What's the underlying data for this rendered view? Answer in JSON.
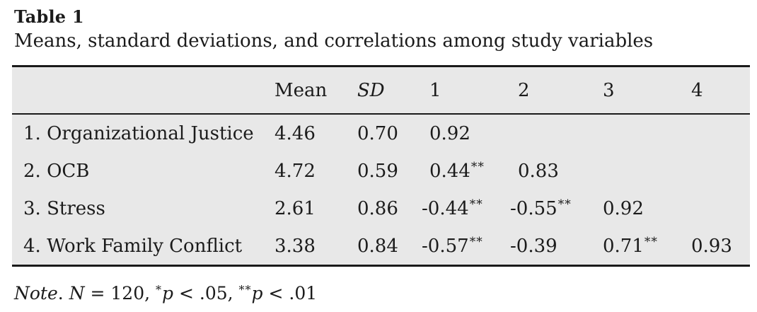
{
  "title": "Table 1",
  "caption": "Means, standard deviations, and correlations among study variables",
  "colors": {
    "table_background": "#e8e8e8",
    "rule": "#1a1a1a",
    "text": "#1b1b1b",
    "page_background": "#ffffff"
  },
  "table": {
    "headers": [
      "Mean",
      "SD",
      "1",
      "2",
      "3",
      "4"
    ],
    "rows": [
      {
        "label": "1. Organizational Justice",
        "cells": [
          {
            "v": "4.46",
            "sig": ""
          },
          {
            "v": "0.70",
            "sig": ""
          },
          {
            "v": "0.92",
            "sig": ""
          },
          {
            "v": "",
            "sig": ""
          },
          {
            "v": "",
            "sig": ""
          },
          {
            "v": "",
            "sig": ""
          }
        ]
      },
      {
        "label": "2. OCB",
        "cells": [
          {
            "v": "4.72",
            "sig": ""
          },
          {
            "v": "0.59",
            "sig": ""
          },
          {
            "v": "0.44",
            "sig": "**"
          },
          {
            "v": "0.83",
            "sig": ""
          },
          {
            "v": "",
            "sig": ""
          },
          {
            "v": "",
            "sig": ""
          }
        ]
      },
      {
        "label": "3. Stress",
        "cells": [
          {
            "v": "2.61",
            "sig": ""
          },
          {
            "v": "0.86",
            "sig": ""
          },
          {
            "v": "-0.44",
            "sig": "**"
          },
          {
            "v": "-0.55",
            "sig": "**"
          },
          {
            "v": "0.92",
            "sig": ""
          },
          {
            "v": "",
            "sig": ""
          }
        ]
      },
      {
        "label": "4. Work Family Conflict",
        "cells": [
          {
            "v": "3.38",
            "sig": ""
          },
          {
            "v": "0.84",
            "sig": ""
          },
          {
            "v": "-0.57",
            "sig": "**"
          },
          {
            "v": "-0.39",
            "sig": ""
          },
          {
            "v": "0.71",
            "sig": "**"
          },
          {
            "v": "0.93",
            "sig": ""
          }
        ]
      }
    ]
  },
  "note": {
    "prefix": "Note",
    "dot": ". ",
    "n": "N",
    "eq": " = 120, ",
    "star1": "*",
    "p1": "p",
    "lt1": " < .05, ",
    "star2": "**",
    "p2": "p",
    "lt2": " < .01"
  }
}
